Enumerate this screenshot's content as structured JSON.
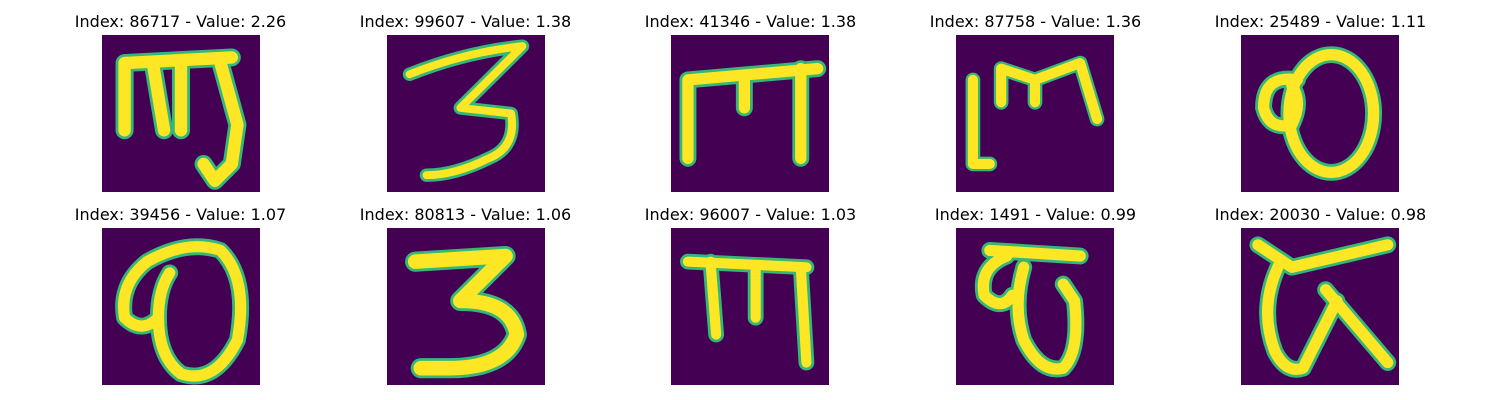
{
  "panels": [
    {
      "title": "Index: 86717 - Value: 2.26",
      "glyph": "mj"
    },
    {
      "title": "Index: 99607 - Value: 1.38",
      "glyph": "three-thin"
    },
    {
      "title": "Index: 41346 - Value: 1.38",
      "glyph": "m-bar"
    },
    {
      "title": "Index: 87758 - Value: 1.36",
      "glyph": "l-bar"
    },
    {
      "title": "Index: 25489 - Value: 1.11",
      "glyph": "loop-o"
    },
    {
      "title": "Index: 39456 - Value: 1.07",
      "glyph": "loop-o2"
    },
    {
      "title": "Index: 80813 - Value: 1.06",
      "glyph": "three-thick"
    },
    {
      "title": "Index: 96007 - Value: 1.03",
      "glyph": "m-bar2"
    },
    {
      "title": "Index: 1491 - Value: 0.99",
      "glyph": "loop-g"
    },
    {
      "title": "Index: 20030 - Value: 0.98",
      "glyph": "k-loop"
    }
  ],
  "colors": {
    "background": "#440154",
    "stroke": "#fde725",
    "edge": "#35b779"
  }
}
